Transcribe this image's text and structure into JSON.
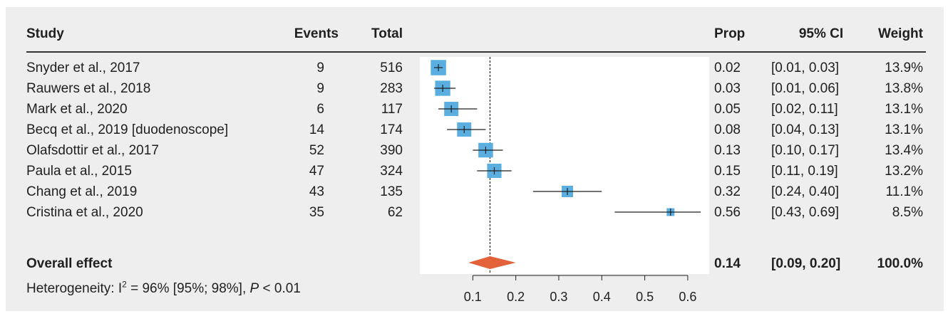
{
  "columns": {
    "study": "Study",
    "events": "Events",
    "total": "Total",
    "prop": "Prop",
    "ci": "95% CI",
    "weight": "Weight"
  },
  "studies": [
    {
      "study": "Snyder et al., 2017",
      "events": "9",
      "total": "516",
      "prop": "0.02",
      "ci": "[0.01, 0.03]",
      "weight": "13.9%"
    },
    {
      "study": "Rauwers et al., 2018",
      "events": "9",
      "total": "283",
      "prop": "0.03",
      "ci": "[0.01, 0.06]",
      "weight": "13.8%"
    },
    {
      "study": "Mark et al., 2020",
      "events": "6",
      "total": "117",
      "prop": "0.05",
      "ci": "[0.02, 0.11]",
      "weight": "13.1%"
    },
    {
      "study": "Becq et al., 2019 [duodenoscope]",
      "events": "14",
      "total": "174",
      "prop": "0.08",
      "ci": "[0.04, 0.13]",
      "weight": "13.1%"
    },
    {
      "study": "Olafsdottir et al., 2017",
      "events": "52",
      "total": "390",
      "prop": "0.13",
      "ci": "[0.10, 0.17]",
      "weight": "13.4%"
    },
    {
      "study": "Paula et al., 2015",
      "events": "47",
      "total": "324",
      "prop": "0.15",
      "ci": "[0.11, 0.19]",
      "weight": "13.2%"
    },
    {
      "study": "Chang et al., 2019",
      "events": "43",
      "total": "135",
      "prop": "0.32",
      "ci": "[0.24, 0.40]",
      "weight": "11.1%"
    },
    {
      "study": "Cristina et al., 2020",
      "events": "35",
      "total": "62",
      "prop": "0.56",
      "ci": "[0.43, 0.69]",
      "weight": "8.5%"
    }
  ],
  "overall": {
    "label": "Overall effect",
    "prop": "0.14",
    "ci": "[0.09, 0.20]",
    "weight": "100.0%"
  },
  "heterogeneity": {
    "prefix": "Heterogeneity: I",
    "sup": "2",
    "mid": " = 96% [95%; 98%], ",
    "p_italic": "P",
    "suffix": " < 0.01"
  },
  "chart_data": {
    "type": "forest",
    "xlim": [
      0,
      0.63
    ],
    "x_ticks": [
      0.1,
      0.2,
      0.3,
      0.4,
      0.5,
      0.6
    ],
    "x_tick_labels": [
      "0.1",
      "0.2",
      "0.3",
      "0.4",
      "0.5",
      "0.6"
    ],
    "reference_line": 0.14,
    "points": [
      {
        "estimate": 0.02,
        "lower": 0.01,
        "upper": 0.03,
        "weight": 13.9
      },
      {
        "estimate": 0.03,
        "lower": 0.01,
        "upper": 0.06,
        "weight": 13.8
      },
      {
        "estimate": 0.05,
        "lower": 0.02,
        "upper": 0.11,
        "weight": 13.1
      },
      {
        "estimate": 0.08,
        "lower": 0.04,
        "upper": 0.13,
        "weight": 13.1
      },
      {
        "estimate": 0.13,
        "lower": 0.1,
        "upper": 0.17,
        "weight": 13.4
      },
      {
        "estimate": 0.15,
        "lower": 0.11,
        "upper": 0.19,
        "weight": 13.2
      },
      {
        "estimate": 0.32,
        "lower": 0.24,
        "upper": 0.4,
        "weight": 11.1
      },
      {
        "estimate": 0.56,
        "lower": 0.43,
        "upper": 0.69,
        "weight": 8.5
      }
    ],
    "overall": {
      "estimate": 0.14,
      "lower": 0.09,
      "upper": 0.2
    },
    "colors": {
      "box": "#5aafe0",
      "diamond": "#e3623a",
      "line": "#1f1f1f"
    }
  }
}
